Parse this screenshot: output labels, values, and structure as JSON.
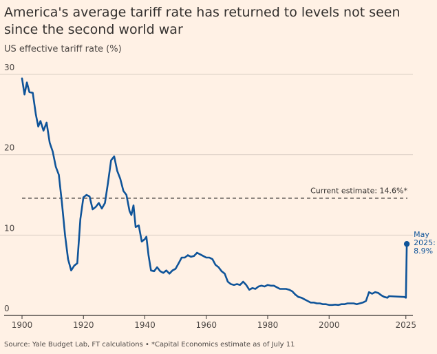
{
  "title": "America's average tariff rate has returned to levels not seen since the second world war",
  "subtitle": "US effective tariff rate (%)",
  "source": "Source: Yale Budget Lab, FT calculations • *Capital Economics estimate as of July 11",
  "colors": {
    "background": "#fff1e5",
    "line": "#0f5499",
    "grid": "#d9cec4",
    "reference": "#33302e"
  },
  "chart_data": {
    "type": "line",
    "title": "America's average tariff rate has returned to levels not seen since the second world war",
    "ylabel": "US effective tariff rate (%)",
    "xlabel": "",
    "xlim": [
      1900,
      2025.5
    ],
    "ylim": [
      0,
      30
    ],
    "grid": true,
    "x_ticks": [
      1900,
      1920,
      1940,
      1960,
      1980,
      2000,
      2025
    ],
    "x_tick_labels": [
      "1900",
      "1920",
      "1940",
      "1960",
      "1980",
      "2000",
      "2025"
    ],
    "y_ticks": [
      0,
      10,
      20,
      30
    ],
    "y_tick_labels": [
      "0",
      "10",
      "20",
      "30"
    ],
    "reference_line": {
      "value": 14.6,
      "label": "Current estimate: 14.6%*"
    },
    "endpoint": {
      "x": 2025.3,
      "y": 8.9,
      "label_lines": [
        "May",
        "2025:",
        "8.9%"
      ]
    },
    "series": [
      {
        "name": "US effective tariff rate",
        "points": [
          [
            1900,
            29.5
          ],
          [
            1900.8,
            27.5
          ],
          [
            1901.6,
            29.0
          ],
          [
            1902.4,
            27.8
          ],
          [
            1903.5,
            27.7
          ],
          [
            1904.5,
            25.0
          ],
          [
            1905.3,
            23.5
          ],
          [
            1906,
            24.2
          ],
          [
            1907,
            23.0
          ],
          [
            1908,
            24.0
          ],
          [
            1909,
            21.5
          ],
          [
            1910,
            20.4
          ],
          [
            1911,
            18.5
          ],
          [
            1912,
            17.5
          ],
          [
            1913,
            14.0
          ],
          [
            1914,
            10.0
          ],
          [
            1915,
            7.0
          ],
          [
            1916,
            5.6
          ],
          [
            1917,
            6.2
          ],
          [
            1918,
            6.5
          ],
          [
            1919,
            12.0
          ],
          [
            1920,
            14.7
          ],
          [
            1921,
            15.0
          ],
          [
            1922,
            14.8
          ],
          [
            1923,
            13.2
          ],
          [
            1924,
            13.5
          ],
          [
            1925,
            14.0
          ],
          [
            1926,
            13.3
          ],
          [
            1927,
            14.0
          ],
          [
            1928,
            16.5
          ],
          [
            1929,
            19.3
          ],
          [
            1930,
            19.8
          ],
          [
            1931,
            18.0
          ],
          [
            1932,
            17.0
          ],
          [
            1933,
            15.5
          ],
          [
            1934,
            15.0
          ],
          [
            1935,
            13.0
          ],
          [
            1935.6,
            12.5
          ],
          [
            1936.3,
            13.7
          ],
          [
            1937,
            11.0
          ],
          [
            1938,
            11.2
          ],
          [
            1939,
            9.2
          ],
          [
            1940,
            9.5
          ],
          [
            1940.5,
            9.8
          ],
          [
            1941.2,
            7.5
          ],
          [
            1942,
            5.6
          ],
          [
            1943,
            5.5
          ],
          [
            1944,
            6.0
          ],
          [
            1945,
            5.5
          ],
          [
            1946,
            5.3
          ],
          [
            1947,
            5.6
          ],
          [
            1948,
            5.2
          ],
          [
            1949,
            5.6
          ],
          [
            1950,
            5.8
          ],
          [
            1951,
            6.5
          ],
          [
            1952,
            7.2
          ],
          [
            1953,
            7.2
          ],
          [
            1954,
            7.5
          ],
          [
            1955,
            7.3
          ],
          [
            1956,
            7.4
          ],
          [
            1957,
            7.8
          ],
          [
            1958,
            7.6
          ],
          [
            1959,
            7.4
          ],
          [
            1960,
            7.2
          ],
          [
            1961,
            7.2
          ],
          [
            1962,
            7.0
          ],
          [
            1963,
            6.3
          ],
          [
            1964,
            6.0
          ],
          [
            1965,
            5.5
          ],
          [
            1966,
            5.2
          ],
          [
            1967,
            4.2
          ],
          [
            1968,
            3.9
          ],
          [
            1969,
            3.8
          ],
          [
            1970,
            3.9
          ],
          [
            1971,
            3.8
          ],
          [
            1972,
            4.2
          ],
          [
            1973,
            3.8
          ],
          [
            1974,
            3.2
          ],
          [
            1975,
            3.4
          ],
          [
            1976,
            3.3
          ],
          [
            1977,
            3.6
          ],
          [
            1978,
            3.7
          ],
          [
            1979,
            3.6
          ],
          [
            1980,
            3.8
          ],
          [
            1981,
            3.7
          ],
          [
            1982,
            3.7
          ],
          [
            1983,
            3.5
          ],
          [
            1984,
            3.3
          ],
          [
            1985,
            3.3
          ],
          [
            1986,
            3.3
          ],
          [
            1987,
            3.2
          ],
          [
            1988,
            3.0
          ],
          [
            1989,
            2.6
          ],
          [
            1990,
            2.3
          ],
          [
            1991,
            2.2
          ],
          [
            1992,
            2.0
          ],
          [
            1993,
            1.8
          ],
          [
            1994,
            1.6
          ],
          [
            1995,
            1.6
          ],
          [
            1996,
            1.5
          ],
          [
            1997,
            1.5
          ],
          [
            1998,
            1.4
          ],
          [
            1999,
            1.4
          ],
          [
            2000,
            1.3
          ],
          [
            2001,
            1.3
          ],
          [
            2002,
            1.35
          ],
          [
            2003,
            1.3
          ],
          [
            2004,
            1.4
          ],
          [
            2005,
            1.4
          ],
          [
            2006,
            1.5
          ],
          [
            2007,
            1.5
          ],
          [
            2008,
            1.5
          ],
          [
            2009,
            1.4
          ],
          [
            2010,
            1.5
          ],
          [
            2011,
            1.6
          ],
          [
            2012,
            1.8
          ],
          [
            2013,
            2.9
          ],
          [
            2014,
            2.7
          ],
          [
            2015,
            2.9
          ],
          [
            2016,
            2.8
          ],
          [
            2017,
            2.5
          ],
          [
            2018,
            2.3
          ],
          [
            2019,
            2.2
          ],
          [
            2019.5,
            2.4
          ],
          [
            2024.5,
            2.3
          ],
          [
            2025,
            2.2
          ],
          [
            2025.3,
            8.9
          ]
        ]
      }
    ]
  }
}
